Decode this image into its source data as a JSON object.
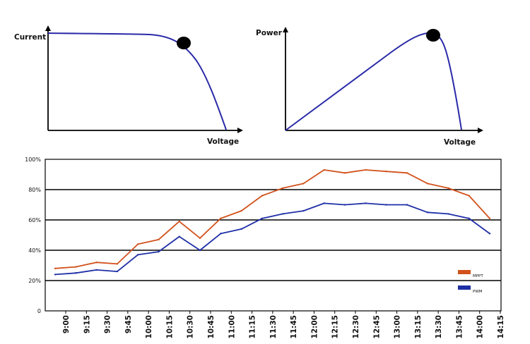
{
  "chart_data": [
    {
      "type": "line",
      "title": "",
      "xlabel": "Voltage",
      "ylabel": "Current",
      "marker": "MPP point on I-V curve",
      "colors": {
        "curve": "#2a2aa8",
        "marker": "#000000",
        "axis": "#000000"
      }
    },
    {
      "type": "line",
      "title": "",
      "xlabel": "Voltage",
      "ylabel": "Power",
      "marker": "MPP point on P-V curve",
      "colors": {
        "curve": "#2a2aa8",
        "marker": "#000000",
        "axis": "#000000"
      }
    },
    {
      "type": "line",
      "title": "",
      "xlabel": "",
      "ylabel": "",
      "ylim": [
        0,
        100
      ],
      "yticks": [
        "0",
        "20%",
        "40%",
        "60%",
        "80%",
        "100%"
      ],
      "grid": true,
      "legend_position": "bottom-right",
      "categories": [
        "9:00",
        "9:15",
        "9:30",
        "9:45",
        "10:00",
        "10:15",
        "10:30",
        "10:45",
        "11:00",
        "11:15",
        "11:30",
        "11:45",
        "12:00",
        "12:15",
        "12:30",
        "12:45",
        "13:00",
        "13:15",
        "13:30",
        "13:45",
        "14:00",
        "14:15"
      ],
      "series": [
        {
          "name": "MPPT",
          "color": "#d2521c",
          "values": [
            28,
            29,
            32,
            31,
            44,
            47,
            59,
            48,
            61,
            66,
            76,
            81,
            84,
            93,
            91,
            93,
            92,
            91,
            84,
            81,
            76,
            61
          ]
        },
        {
          "name": "PWM",
          "color": "#1f2fa6",
          "values": [
            24,
            25,
            27,
            26,
            37,
            39,
            49,
            40,
            51,
            54,
            61,
            64,
            66,
            71,
            70,
            71,
            70,
            70,
            65,
            64,
            61,
            51
          ]
        }
      ]
    }
  ]
}
